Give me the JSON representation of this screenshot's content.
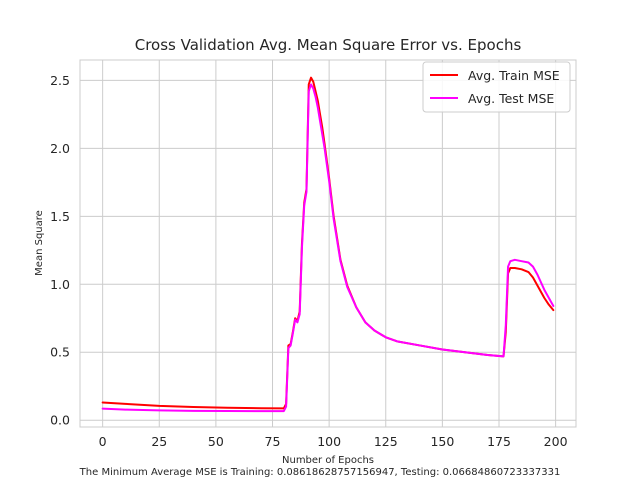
{
  "chart_data": {
    "type": "line",
    "title": "Cross Validation Avg. Mean Square Error vs. Epochs",
    "xlabel": "Number of Epochs",
    "ylabel": "Mean Square",
    "caption": "The Minimum Average MSE is Training: 0.08618628757156947, Testing: 0.06684860723337331",
    "xlim": [
      -10,
      209
    ],
    "ylim": [
      -0.05,
      2.65
    ],
    "xticks": [
      0,
      25,
      50,
      75,
      100,
      125,
      150,
      175,
      200
    ],
    "yticks": [
      0.0,
      0.5,
      1.0,
      1.5,
      2.0,
      2.5
    ],
    "grid": true,
    "legend_position": "top-right",
    "series": [
      {
        "name": "Avg. Train MSE",
        "color": "#ff0000",
        "x": [
          0,
          10,
          25,
          40,
          55,
          70,
          80,
          81,
          82,
          83,
          84,
          85,
          86,
          87,
          88,
          89,
          90,
          91,
          92,
          93,
          94,
          95,
          96,
          97,
          98,
          100,
          102,
          105,
          108,
          112,
          116,
          120,
          125,
          130,
          140,
          150,
          160,
          170,
          177,
          178,
          179,
          180,
          182,
          185,
          188,
          190,
          192,
          195,
          197,
          199
        ],
        "y": [
          0.13,
          0.12,
          0.105,
          0.097,
          0.092,
          0.088,
          0.087,
          0.12,
          0.55,
          0.56,
          0.65,
          0.75,
          0.73,
          0.8,
          1.3,
          1.6,
          1.7,
          2.47,
          2.52,
          2.49,
          2.42,
          2.35,
          2.25,
          2.15,
          2.03,
          1.78,
          1.5,
          1.18,
          0.99,
          0.83,
          0.72,
          0.66,
          0.61,
          0.58,
          0.55,
          0.52,
          0.5,
          0.48,
          0.47,
          0.65,
          1.08,
          1.12,
          1.12,
          1.11,
          1.09,
          1.05,
          0.99,
          0.9,
          0.85,
          0.81
        ]
      },
      {
        "name": "Avg. Test MSE",
        "color": "#ff00ff",
        "x": [
          0,
          10,
          25,
          40,
          55,
          70,
          80,
          81,
          82,
          83,
          84,
          85,
          86,
          87,
          88,
          89,
          90,
          91,
          92,
          93,
          94,
          95,
          96,
          97,
          98,
          100,
          102,
          105,
          108,
          112,
          116,
          120,
          125,
          130,
          140,
          150,
          160,
          170,
          177,
          178,
          179,
          180,
          182,
          185,
          188,
          190,
          192,
          195,
          197,
          199
        ],
        "y": [
          0.085,
          0.078,
          0.072,
          0.069,
          0.068,
          0.067,
          0.067,
          0.1,
          0.53,
          0.55,
          0.64,
          0.74,
          0.72,
          0.78,
          1.27,
          1.58,
          1.68,
          2.42,
          2.47,
          2.44,
          2.38,
          2.3,
          2.2,
          2.1,
          2.0,
          1.76,
          1.48,
          1.17,
          0.98,
          0.83,
          0.72,
          0.66,
          0.61,
          0.58,
          0.55,
          0.52,
          0.5,
          0.48,
          0.47,
          0.7,
          1.13,
          1.17,
          1.18,
          1.17,
          1.16,
          1.13,
          1.07,
          0.96,
          0.9,
          0.84
        ]
      }
    ]
  }
}
